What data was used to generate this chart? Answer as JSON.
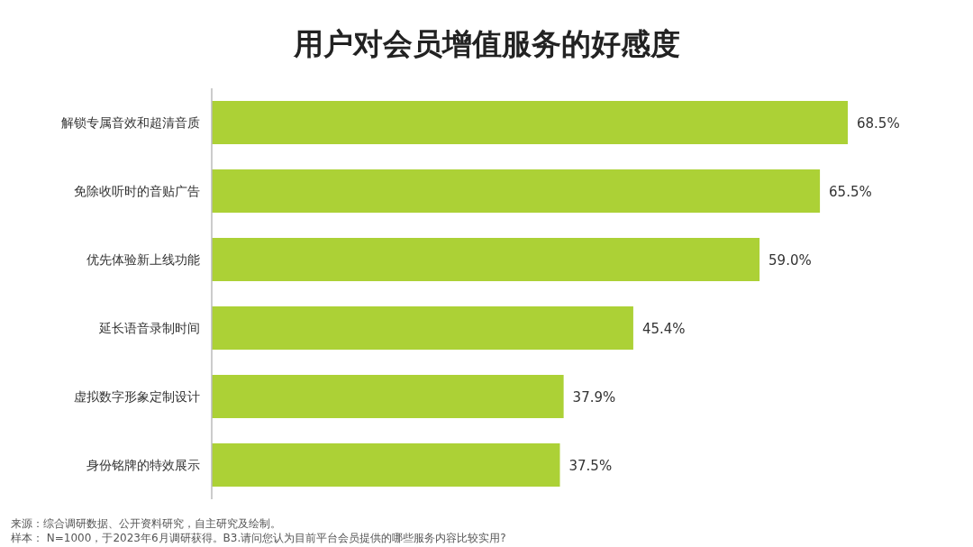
{
  "chart_data": {
    "type": "bar",
    "orientation": "horizontal",
    "title": "用户对会员增值服务的好感度",
    "categories": [
      "解锁专属音效和超清音质",
      "免除收听时的音贴广告",
      "优先体验新上线功能",
      "延长语音录制时间",
      "虚拟数字形象定制设计",
      "身份铭牌的特效展示"
    ],
    "values": [
      68.5,
      65.5,
      59.0,
      45.4,
      37.9,
      37.5
    ],
    "value_labels": [
      "68.5%",
      "65.5%",
      "59.0%",
      "45.4%",
      "37.9%",
      "37.5%"
    ],
    "color": "#acd136",
    "annotations": [
      "来源：综合调研数据、公开资料研究，自主研究及绘制。",
      "样本： N=1000，于2023年6月调研获得。B3.请问您认为目前平台会员提供的哪些服务内容比较实用?"
    ]
  }
}
